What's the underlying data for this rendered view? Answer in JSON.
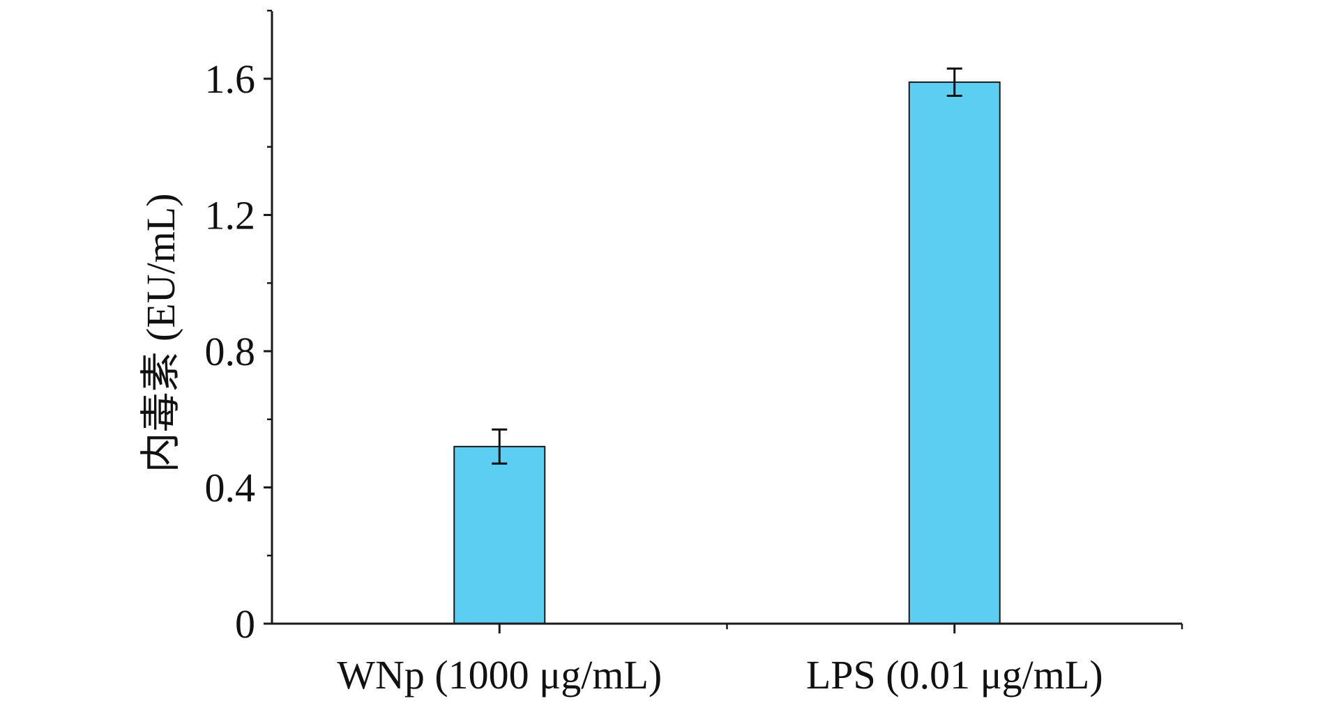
{
  "chart_data": {
    "type": "bar",
    "title": "",
    "xlabel": "",
    "ylabel": "内毒素 (EU/mL)",
    "categories": [
      "WNp (1000 μg/mL)",
      "LPS (0.01 μg/mL)"
    ],
    "values": [
      0.52,
      1.59
    ],
    "errors": [
      0.05,
      0.04
    ],
    "ylim": [
      0,
      1.8
    ],
    "y_ticks": [
      0,
      0.4,
      0.8,
      1.2,
      1.6
    ],
    "y_tick_labels": [
      "0",
      "0.4",
      "0.8",
      "1.2",
      "1.6"
    ],
    "minor_y_ticks": [
      0.2,
      0.6,
      1.0,
      1.4,
      1.8
    ],
    "grid": false,
    "legend": "none",
    "bar_color": "#5BCEF2",
    "bar_edge_color": "#1a1a1a",
    "axis_color": "#1a1a1a"
  }
}
